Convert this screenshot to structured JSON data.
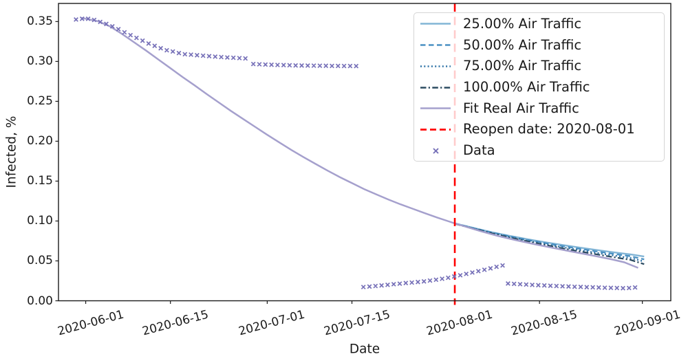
{
  "figure": {
    "xlabel": "Date",
    "ylabel": "Infected, %"
  },
  "legend": {
    "items": [
      {
        "label": "25.00% Air Traffic",
        "type": "line",
        "style": "solid",
        "color": "#82b5d6"
      },
      {
        "label": "50.00% Air Traffic",
        "type": "line",
        "style": "dashed",
        "color": "#4a90c2"
      },
      {
        "label": "75.00% Air Traffic",
        "type": "line",
        "style": "dotted",
        "color": "#2e72a6"
      },
      {
        "label": "100.00% Air Traffic",
        "type": "line",
        "style": "dashdot",
        "color": "#2c4b61"
      },
      {
        "label": "Fit Real Air Traffic",
        "type": "line",
        "style": "solid",
        "color": "#a5a0cd"
      },
      {
        "label": "Reopen date: 2020-08-01",
        "type": "line",
        "style": "reddash",
        "color": "#ff0000"
      },
      {
        "label": "Data",
        "type": "marker",
        "style": "x",
        "color": "#7670b8"
      }
    ]
  },
  "chart_data": {
    "type": "line",
    "title": "",
    "xlabel": "Date",
    "ylabel": "Infected, %",
    "x_unit": "days since 2020-06-01",
    "xlim": [
      -4.5,
      96.7
    ],
    "ylim": [
      0,
      0.3727
    ],
    "grid": false,
    "legend_position": "upper right",
    "x_ticks": [
      {
        "label": "2020-06-01",
        "day": 0
      },
      {
        "label": "2020-06-15",
        "day": 14
      },
      {
        "label": "2020-07-01",
        "day": 30
      },
      {
        "label": "2020-07-15",
        "day": 44
      },
      {
        "label": "2020-08-01",
        "day": 61
      },
      {
        "label": "2020-08-15",
        "day": 75
      },
      {
        "label": "2020-09-01",
        "day": 92
      }
    ],
    "y_ticks": [
      {
        "label": "0.00",
        "value": 0.0
      },
      {
        "label": "0.05",
        "value": 0.05
      },
      {
        "label": "0.10",
        "value": 0.1
      },
      {
        "label": "0.15",
        "value": 0.15
      },
      {
        "label": "0.20",
        "value": 0.2
      },
      {
        "label": "0.25",
        "value": 0.25
      },
      {
        "label": "0.30",
        "value": 0.3
      },
      {
        "label": "0.35",
        "value": 0.35
      }
    ],
    "reopen_line": {
      "day": 61,
      "label": "Reopen date: 2020-08-01",
      "color": "#ff0000",
      "style": "reddash"
    },
    "series": [
      {
        "name": "25.00% Air Traffic",
        "color": "#82b5d6",
        "style": "solid",
        "width": 2.4,
        "points": [
          [
            61,
            0.097
          ],
          [
            64,
            0.0915
          ],
          [
            67,
            0.0862
          ],
          [
            70,
            0.0815
          ],
          [
            73,
            0.0772
          ],
          [
            76,
            0.0733
          ],
          [
            79,
            0.0697
          ],
          [
            82,
            0.0663
          ],
          [
            85,
            0.0631
          ],
          [
            88,
            0.0601
          ],
          [
            90,
            0.0582
          ],
          [
            92.3,
            0.0555
          ]
        ]
      },
      {
        "name": "50.00% Air Traffic",
        "color": "#4a90c2",
        "style": "dashed",
        "width": 2.3,
        "points": [
          [
            61,
            0.097
          ],
          [
            64,
            0.0912
          ],
          [
            67,
            0.0857
          ],
          [
            70,
            0.0808
          ],
          [
            73,
            0.0763
          ],
          [
            76,
            0.0722
          ],
          [
            79,
            0.0683
          ],
          [
            82,
            0.0647
          ],
          [
            85,
            0.0613
          ],
          [
            88,
            0.058
          ],
          [
            90,
            0.0559
          ],
          [
            92.3,
            0.0519
          ]
        ]
      },
      {
        "name": "75.00% Air Traffic",
        "color": "#2e72a6",
        "style": "dotted",
        "width": 2.4,
        "points": [
          [
            61,
            0.0968
          ],
          [
            64,
            0.0909
          ],
          [
            67,
            0.0852
          ],
          [
            70,
            0.0801
          ],
          [
            73,
            0.0754
          ],
          [
            76,
            0.071
          ],
          [
            79,
            0.0669
          ],
          [
            82,
            0.0631
          ],
          [
            85,
            0.0594
          ],
          [
            88,
            0.0559
          ],
          [
            90,
            0.0536
          ],
          [
            92.3,
            0.0492
          ]
        ]
      },
      {
        "name": "100.00% Air Traffic",
        "color": "#2c4b61",
        "style": "dashdot",
        "width": 2.3,
        "points": [
          [
            61,
            0.0966
          ],
          [
            64,
            0.0905
          ],
          [
            67,
            0.0847
          ],
          [
            70,
            0.0794
          ],
          [
            73,
            0.0745
          ],
          [
            76,
            0.0699
          ],
          [
            79,
            0.0655
          ],
          [
            82,
            0.0614
          ],
          [
            85,
            0.0575
          ],
          [
            88,
            0.0538
          ],
          [
            90,
            0.0514
          ],
          [
            92.3,
            0.0459
          ]
        ]
      },
      {
        "name": "Fit Real Air Traffic",
        "color": "#a5a0cd",
        "style": "solid",
        "width": 2.5,
        "points": [
          [
            -0.7,
            0.3545
          ],
          [
            0,
            0.3535
          ],
          [
            2,
            0.3505
          ],
          [
            4,
            0.344
          ],
          [
            6,
            0.3345
          ],
          [
            8,
            0.324
          ],
          [
            10,
            0.3135
          ],
          [
            12,
            0.3025
          ],
          [
            14,
            0.2915
          ],
          [
            16,
            0.2805
          ],
          [
            18,
            0.27
          ],
          [
            20,
            0.259
          ],
          [
            22,
            0.2485
          ],
          [
            24,
            0.238
          ],
          [
            26,
            0.228
          ],
          [
            28,
            0.218
          ],
          [
            30,
            0.208
          ],
          [
            32,
            0.1985
          ],
          [
            34,
            0.189
          ],
          [
            36,
            0.18
          ],
          [
            38,
            0.1715
          ],
          [
            40,
            0.163
          ],
          [
            42,
            0.155
          ],
          [
            44,
            0.1475
          ],
          [
            46,
            0.14
          ],
          [
            48,
            0.1335
          ],
          [
            50,
            0.127
          ],
          [
            52,
            0.121
          ],
          [
            54,
            0.1155
          ],
          [
            56,
            0.11
          ],
          [
            58,
            0.1045
          ],
          [
            60,
            0.0995
          ],
          [
            61,
            0.097
          ],
          [
            63,
            0.0925
          ],
          [
            65,
            0.0878
          ],
          [
            68,
            0.0815
          ],
          [
            71,
            0.0762
          ],
          [
            74,
            0.0712
          ],
          [
            77,
            0.0666
          ],
          [
            80,
            0.0621
          ],
          [
            83,
            0.0578
          ],
          [
            85,
            0.0549
          ],
          [
            87,
            0.0518
          ],
          [
            89,
            0.0483
          ],
          [
            91.3,
            0.0413
          ]
        ]
      }
    ],
    "scatter": {
      "name": "Data",
      "color": "#7670b8",
      "marker": "x",
      "points": [
        [
          -1.6,
          0.3525
        ],
        [
          -0.6,
          0.3535
        ],
        [
          0.4,
          0.3535
        ],
        [
          1.4,
          0.352
        ],
        [
          2.4,
          0.3495
        ],
        [
          3.4,
          0.347
        ],
        [
          4.4,
          0.344
        ],
        [
          5.4,
          0.3405
        ],
        [
          6.4,
          0.3365
        ],
        [
          7.4,
          0.333
        ],
        [
          8.4,
          0.3295
        ],
        [
          9.4,
          0.326
        ],
        [
          10.4,
          0.3225
        ],
        [
          11.4,
          0.3195
        ],
        [
          12.4,
          0.3165
        ],
        [
          13.4,
          0.314
        ],
        [
          14.4,
          0.3125
        ],
        [
          15.4,
          0.3105
        ],
        [
          16.4,
          0.309
        ],
        [
          17.4,
          0.3085
        ],
        [
          18.4,
          0.3078
        ],
        [
          19.4,
          0.3072
        ],
        [
          20.4,
          0.3066
        ],
        [
          21.4,
          0.306
        ],
        [
          22.4,
          0.3055
        ],
        [
          23.4,
          0.305
        ],
        [
          24.4,
          0.3046
        ],
        [
          25.4,
          0.3042
        ],
        [
          26.4,
          0.3038
        ],
        [
          27.7,
          0.2968
        ],
        [
          28.7,
          0.2964
        ],
        [
          29.7,
          0.2961
        ],
        [
          30.7,
          0.2958
        ],
        [
          31.7,
          0.2956
        ],
        [
          32.7,
          0.2954
        ],
        [
          33.7,
          0.2952
        ],
        [
          34.7,
          0.295
        ],
        [
          35.7,
          0.2949
        ],
        [
          36.7,
          0.2948
        ],
        [
          37.7,
          0.2947
        ],
        [
          38.7,
          0.2946
        ],
        [
          39.7,
          0.2945
        ],
        [
          40.7,
          0.2944
        ],
        [
          41.7,
          0.2944
        ],
        [
          42.7,
          0.2943
        ],
        [
          43.7,
          0.2943
        ],
        [
          44.7,
          0.2942
        ],
        [
          45.9,
          0.0172
        ],
        [
          46.9,
          0.0178
        ],
        [
          47.9,
          0.0185
        ],
        [
          48.9,
          0.0192
        ],
        [
          49.9,
          0.02
        ],
        [
          50.9,
          0.0208
        ],
        [
          51.9,
          0.0215
        ],
        [
          52.9,
          0.0222
        ],
        [
          53.9,
          0.0228
        ],
        [
          54.9,
          0.0235
        ],
        [
          55.9,
          0.0243
        ],
        [
          56.9,
          0.0253
        ],
        [
          57.9,
          0.0264
        ],
        [
          58.9,
          0.0276
        ],
        [
          59.9,
          0.0289
        ],
        [
          60.9,
          0.0304
        ],
        [
          61.9,
          0.032
        ],
        [
          62.9,
          0.0337
        ],
        [
          63.9,
          0.0354
        ],
        [
          64.9,
          0.0371
        ],
        [
          65.9,
          0.0389
        ],
        [
          66.9,
          0.0407
        ],
        [
          67.9,
          0.0426
        ],
        [
          68.9,
          0.0443
        ],
        [
          69.8,
          0.0216
        ],
        [
          70.8,
          0.0212
        ],
        [
          71.8,
          0.0208
        ],
        [
          72.8,
          0.0203
        ],
        [
          73.8,
          0.0199
        ],
        [
          74.8,
          0.0196
        ],
        [
          75.8,
          0.0192
        ],
        [
          76.8,
          0.0188
        ],
        [
          77.8,
          0.0185
        ],
        [
          78.8,
          0.0182
        ],
        [
          79.8,
          0.0179
        ],
        [
          80.8,
          0.0176
        ],
        [
          81.8,
          0.0174
        ],
        [
          82.8,
          0.0171
        ],
        [
          83.8,
          0.0169
        ],
        [
          84.8,
          0.0166
        ],
        [
          85.8,
          0.0164
        ],
        [
          86.8,
          0.0162
        ],
        [
          87.8,
          0.016
        ],
        [
          88.8,
          0.0158
        ],
        [
          89.8,
          0.016
        ],
        [
          90.8,
          0.0167
        ]
      ]
    }
  }
}
